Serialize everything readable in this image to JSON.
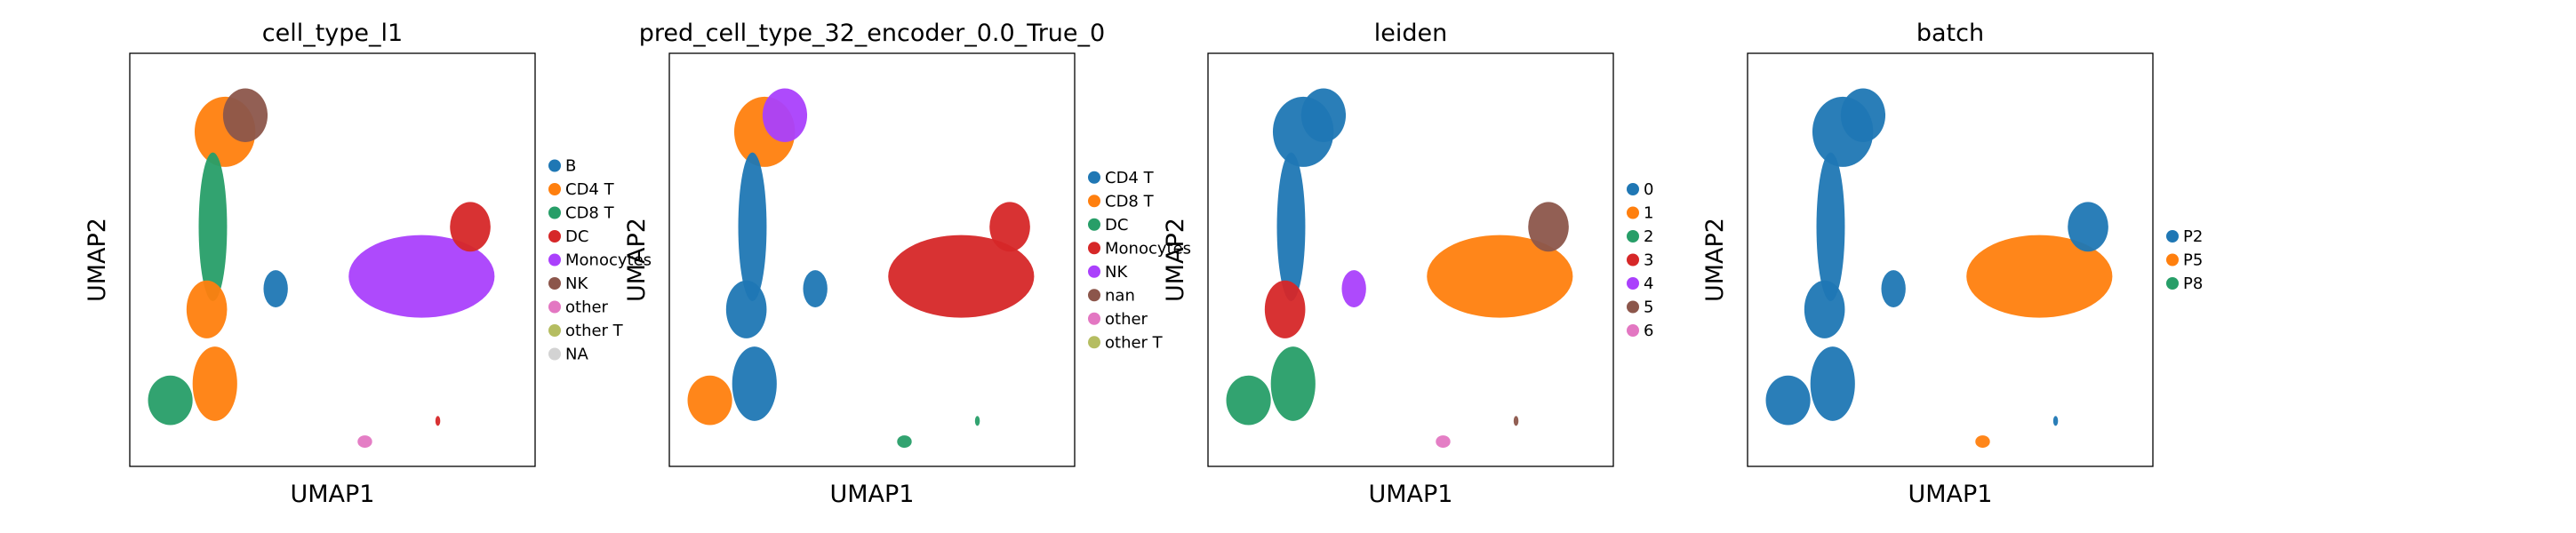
{
  "figure": {
    "panels": [
      {
        "title": "cell_type_l1",
        "xlabel": "UMAP1",
        "ylabel": "UMAP2",
        "legend": [
          {
            "label": "B",
            "color": "#1f77b4"
          },
          {
            "label": "CD4 T",
            "color": "#ff7f0e"
          },
          {
            "label": "CD8 T",
            "color": "#279e68"
          },
          {
            "label": "DC",
            "color": "#d62728"
          },
          {
            "label": "Monocytes",
            "color": "#aa40fc"
          },
          {
            "label": "NK",
            "color": "#8c564b"
          },
          {
            "label": "other",
            "color": "#e377c2"
          },
          {
            "label": "other T",
            "color": "#b5bd61"
          },
          {
            "label": "NA",
            "color": "#d3d3d3"
          }
        ]
      },
      {
        "title": "pred_cell_type_32_encoder_0.0_True_0",
        "xlabel": "UMAP1",
        "ylabel": "UMAP2",
        "legend": [
          {
            "label": "CD4 T",
            "color": "#1f77b4"
          },
          {
            "label": "CD8 T",
            "color": "#ff7f0e"
          },
          {
            "label": "DC",
            "color": "#279e68"
          },
          {
            "label": "Monocytes",
            "color": "#d62728"
          },
          {
            "label": "NK",
            "color": "#aa40fc"
          },
          {
            "label": "nan",
            "color": "#8c564b"
          },
          {
            "label": "other",
            "color": "#e377c2"
          },
          {
            "label": "other T",
            "color": "#b5bd61"
          }
        ]
      },
      {
        "title": "leiden",
        "xlabel": "UMAP1",
        "ylabel": "UMAP2",
        "legend": [
          {
            "label": "0",
            "color": "#1f77b4"
          },
          {
            "label": "1",
            "color": "#ff7f0e"
          },
          {
            "label": "2",
            "color": "#279e68"
          },
          {
            "label": "3",
            "color": "#d62728"
          },
          {
            "label": "4",
            "color": "#aa40fc"
          },
          {
            "label": "5",
            "color": "#8c564b"
          },
          {
            "label": "6",
            "color": "#e377c2"
          }
        ]
      },
      {
        "title": "batch",
        "xlabel": "UMAP1",
        "ylabel": "UMAP2",
        "legend": [
          {
            "label": "P2",
            "color": "#1f77b4"
          },
          {
            "label": "P5",
            "color": "#ff7f0e"
          },
          {
            "label": "P8",
            "color": "#279e68"
          }
        ]
      }
    ]
  },
  "chart_data": [
    {
      "type": "scatter",
      "title": "cell_type_l1",
      "xlabel": "UMAP1",
      "ylabel": "UMAP2",
      "grid": false,
      "legend_position": "right",
      "categories": [
        "B",
        "CD4 T",
        "CD8 T",
        "DC",
        "Monocytes",
        "NK",
        "other",
        "other T",
        "NA"
      ]
    },
    {
      "type": "scatter",
      "title": "pred_cell_type_32_encoder_0.0_True_0",
      "xlabel": "UMAP1",
      "ylabel": "UMAP2",
      "grid": false,
      "legend_position": "right",
      "categories": [
        "CD4 T",
        "CD8 T",
        "DC",
        "Monocytes",
        "NK",
        "nan",
        "other",
        "other T"
      ]
    },
    {
      "type": "scatter",
      "title": "leiden",
      "xlabel": "UMAP1",
      "ylabel": "UMAP2",
      "grid": false,
      "legend_position": "right",
      "categories": [
        "0",
        "1",
        "2",
        "3",
        "4",
        "5",
        "6"
      ]
    },
    {
      "type": "scatter",
      "title": "batch",
      "xlabel": "UMAP1",
      "ylabel": "UMAP2",
      "grid": false,
      "legend_position": "right",
      "categories": [
        "P2",
        "P5",
        "P8"
      ]
    }
  ]
}
